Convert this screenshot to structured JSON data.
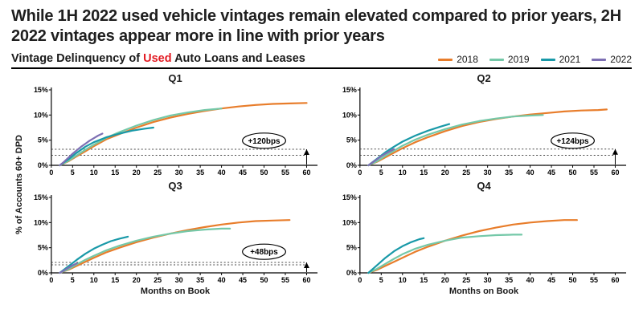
{
  "header": {
    "title": "While 1H 2022 used vehicle vintages remain elevated compared to prior years, 2H 2022 vintages appear more in line with prior years"
  },
  "subtitle": {
    "prefix": "Vintage Delinquency of ",
    "highlight": "Used",
    "suffix": " Auto Loans and Leases",
    "highlight_color": "#E31B23"
  },
  "legend": {
    "items": [
      {
        "label": "2018",
        "color": "#E87D2B"
      },
      {
        "label": "2019",
        "color": "#74C8A8"
      },
      {
        "label": "2021",
        "color": "#1899A8"
      },
      {
        "label": "2022",
        "color": "#7D6FB3"
      }
    ]
  },
  "axes": {
    "ylabel": "% of Accounts 60+ DPD",
    "xlabel": "Months on Book"
  },
  "chart_data": [
    {
      "type": "line",
      "title": "Q1",
      "xlim": [
        0,
        62
      ],
      "ylim": [
        0,
        15
      ],
      "xticks": [
        0,
        5,
        10,
        15,
        20,
        25,
        30,
        35,
        40,
        45,
        50,
        55,
        60
      ],
      "yticks": [
        0,
        5,
        10,
        15
      ],
      "ref_lines": [
        2.0,
        3.2
      ],
      "ref_marker_x": 60,
      "annotation": {
        "label": "+120bps",
        "x": 50,
        "y": 4.9
      },
      "series": [
        {
          "name": "2018",
          "color": "#E87D2B",
          "points": [
            [
              2,
              0
            ],
            [
              4,
              0.8
            ],
            [
              6,
              1.8
            ],
            [
              8,
              2.8
            ],
            [
              10,
              3.8
            ],
            [
              13,
              5.2
            ],
            [
              16,
              6.2
            ],
            [
              20,
              7.5
            ],
            [
              24,
              8.6
            ],
            [
              28,
              9.5
            ],
            [
              32,
              10.2
            ],
            [
              36,
              10.8
            ],
            [
              40,
              11.3
            ],
            [
              44,
              11.7
            ],
            [
              48,
              12.0
            ],
            [
              52,
              12.2
            ],
            [
              56,
              12.3
            ],
            [
              60,
              12.4
            ]
          ]
        },
        {
          "name": "2019",
          "color": "#74C8A8",
          "points": [
            [
              2,
              0
            ],
            [
              4,
              0.9
            ],
            [
              6,
              2.0
            ],
            [
              8,
              3.1
            ],
            [
              10,
              4.1
            ],
            [
              13,
              5.5
            ],
            [
              16,
              6.6
            ],
            [
              20,
              7.9
            ],
            [
              24,
              9.0
            ],
            [
              28,
              9.9
            ],
            [
              32,
              10.5
            ],
            [
              36,
              11.0
            ],
            [
              40,
              11.3
            ]
          ]
        },
        {
          "name": "2021",
          "color": "#1899A8",
          "points": [
            [
              2,
              0
            ],
            [
              4,
              1.2
            ],
            [
              6,
              2.5
            ],
            [
              8,
              3.7
            ],
            [
              10,
              4.6
            ],
            [
              13,
              5.6
            ],
            [
              16,
              6.3
            ],
            [
              19,
              6.9
            ],
            [
              22,
              7.3
            ],
            [
              24,
              7.5
            ]
          ]
        },
        {
          "name": "2022",
          "color": "#7D6FB3",
          "points": [
            [
              2,
              0
            ],
            [
              3,
              0.7
            ],
            [
              4,
              1.5
            ],
            [
              5,
              2.3
            ],
            [
              6,
              3.0
            ],
            [
              7,
              3.7
            ],
            [
              8,
              4.3
            ],
            [
              9,
              4.9
            ],
            [
              10,
              5.4
            ],
            [
              11,
              5.9
            ],
            [
              12,
              6.3
            ]
          ]
        }
      ]
    },
    {
      "type": "line",
      "title": "Q2",
      "xlim": [
        0,
        62
      ],
      "ylim": [
        0,
        15
      ],
      "xticks": [
        0,
        5,
        10,
        15,
        20,
        25,
        30,
        35,
        40,
        45,
        50,
        55,
        60
      ],
      "yticks": [
        0,
        5,
        10,
        15
      ],
      "ref_lines": [
        2.0,
        3.24
      ],
      "ref_marker_x": 60,
      "annotation": {
        "label": "+124bps",
        "x": 50,
        "y": 4.9
      },
      "series": [
        {
          "name": "2018",
          "color": "#E87D2B",
          "points": [
            [
              2,
              0
            ],
            [
              4,
              0.7
            ],
            [
              6,
              1.6
            ],
            [
              8,
              2.5
            ],
            [
              10,
              3.4
            ],
            [
              13,
              4.6
            ],
            [
              16,
              5.6
            ],
            [
              20,
              6.8
            ],
            [
              24,
              7.8
            ],
            [
              28,
              8.6
            ],
            [
              32,
              9.2
            ],
            [
              36,
              9.7
            ],
            [
              40,
              10.1
            ],
            [
              44,
              10.4
            ],
            [
              48,
              10.7
            ],
            [
              52,
              10.9
            ],
            [
              56,
              11.0
            ],
            [
              58,
              11.1
            ]
          ]
        },
        {
          "name": "2019",
          "color": "#74C8A8",
          "points": [
            [
              2,
              0
            ],
            [
              4,
              0.8
            ],
            [
              6,
              1.9
            ],
            [
              8,
              2.9
            ],
            [
              10,
              3.9
            ],
            [
              13,
              5.1
            ],
            [
              16,
              6.1
            ],
            [
              20,
              7.2
            ],
            [
              24,
              8.1
            ],
            [
              28,
              8.8
            ],
            [
              32,
              9.3
            ],
            [
              36,
              9.7
            ],
            [
              40,
              9.9
            ],
            [
              43,
              10.0
            ]
          ]
        },
        {
          "name": "2021",
          "color": "#1899A8",
          "points": [
            [
              2,
              0
            ],
            [
              4,
              1.3
            ],
            [
              6,
              2.6
            ],
            [
              8,
              3.7
            ],
            [
              10,
              4.7
            ],
            [
              13,
              5.9
            ],
            [
              16,
              6.9
            ],
            [
              19,
              7.7
            ],
            [
              21,
              8.2
            ]
          ]
        },
        {
          "name": "2022",
          "color": "#7D6FB3",
          "points": [
            [
              2,
              0
            ],
            [
              3,
              0.6
            ],
            [
              4,
              1.2
            ],
            [
              5,
              1.8
            ],
            [
              6,
              2.3
            ],
            [
              7,
              2.8
            ],
            [
              8,
              3.2
            ]
          ]
        }
      ]
    },
    {
      "type": "line",
      "title": "Q3",
      "xlim": [
        0,
        62
      ],
      "ylim": [
        0,
        15
      ],
      "xticks": [
        0,
        5,
        10,
        15,
        20,
        25,
        30,
        35,
        40,
        45,
        50,
        55,
        60
      ],
      "yticks": [
        0,
        5,
        10,
        15
      ],
      "ref_lines": [
        1.6,
        2.08
      ],
      "ref_marker_x": 60,
      "annotation": {
        "label": "+48bps",
        "x": 50,
        "y": 4.2
      },
      "series": [
        {
          "name": "2018",
          "color": "#E87D2B",
          "points": [
            [
              2,
              0
            ],
            [
              4,
              0.6
            ],
            [
              6,
              1.4
            ],
            [
              8,
              2.2
            ],
            [
              10,
              3.0
            ],
            [
              13,
              4.1
            ],
            [
              16,
              5.0
            ],
            [
              20,
              6.1
            ],
            [
              24,
              7.0
            ],
            [
              28,
              7.8
            ],
            [
              32,
              8.5
            ],
            [
              36,
              9.1
            ],
            [
              40,
              9.6
            ],
            [
              44,
              10.0
            ],
            [
              48,
              10.3
            ],
            [
              52,
              10.4
            ],
            [
              56,
              10.5
            ]
          ]
        },
        {
          "name": "2019",
          "color": "#74C8A8",
          "points": [
            [
              2,
              0
            ],
            [
              4,
              0.7
            ],
            [
              6,
              1.7
            ],
            [
              8,
              2.6
            ],
            [
              10,
              3.4
            ],
            [
              13,
              4.5
            ],
            [
              16,
              5.4
            ],
            [
              20,
              6.4
            ],
            [
              24,
              7.2
            ],
            [
              28,
              7.8
            ],
            [
              32,
              8.3
            ],
            [
              36,
              8.6
            ],
            [
              40,
              8.8
            ],
            [
              42,
              8.8
            ]
          ]
        },
        {
          "name": "2021",
          "color": "#1899A8",
          "points": [
            [
              2,
              0
            ],
            [
              4,
              1.3
            ],
            [
              6,
              2.6
            ],
            [
              8,
              3.8
            ],
            [
              10,
              4.8
            ],
            [
              12,
              5.6
            ],
            [
              14,
              6.3
            ],
            [
              16,
              6.8
            ],
            [
              18,
              7.2
            ]
          ]
        },
        {
          "name": "2022",
          "color": "#7D6FB3",
          "points": [
            [
              2,
              0
            ],
            [
              3,
              0.5
            ],
            [
              4,
              1.0
            ],
            [
              5,
              1.5
            ],
            [
              6,
              1.9
            ]
          ]
        }
      ]
    },
    {
      "type": "line",
      "title": "Q4",
      "xlim": [
        0,
        62
      ],
      "ylim": [
        0,
        15
      ],
      "xticks": [
        0,
        5,
        10,
        15,
        20,
        25,
        30,
        35,
        40,
        45,
        50,
        55,
        60
      ],
      "yticks": [
        0,
        5,
        10,
        15
      ],
      "ref_lines": [],
      "ref_marker_x": null,
      "annotation": null,
      "series": [
        {
          "name": "2018",
          "color": "#E87D2B",
          "points": [
            [
              2,
              0
            ],
            [
              4,
              0.6
            ],
            [
              6,
              1.4
            ],
            [
              8,
              2.2
            ],
            [
              10,
              3.0
            ],
            [
              13,
              4.2
            ],
            [
              16,
              5.2
            ],
            [
              20,
              6.4
            ],
            [
              24,
              7.4
            ],
            [
              28,
              8.3
            ],
            [
              32,
              9.0
            ],
            [
              36,
              9.6
            ],
            [
              40,
              10.0
            ],
            [
              44,
              10.3
            ],
            [
              48,
              10.5
            ],
            [
              51,
              10.5
            ]
          ]
        },
        {
          "name": "2019",
          "color": "#74C8A8",
          "points": [
            [
              2,
              0
            ],
            [
              4,
              0.8
            ],
            [
              6,
              1.8
            ],
            [
              8,
              2.8
            ],
            [
              10,
              3.7
            ],
            [
              13,
              4.8
            ],
            [
              16,
              5.6
            ],
            [
              20,
              6.4
            ],
            [
              24,
              7.0
            ],
            [
              28,
              7.3
            ],
            [
              32,
              7.5
            ],
            [
              36,
              7.6
            ],
            [
              38,
              7.6
            ]
          ]
        },
        {
          "name": "2021",
          "color": "#1899A8",
          "points": [
            [
              2,
              0
            ],
            [
              4,
              1.5
            ],
            [
              6,
              3.0
            ],
            [
              8,
              4.3
            ],
            [
              10,
              5.3
            ],
            [
              12,
              6.1
            ],
            [
              14,
              6.7
            ],
            [
              15,
              6.9
            ]
          ]
        }
      ]
    }
  ]
}
